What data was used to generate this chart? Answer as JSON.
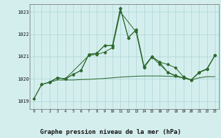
{
  "background_color": "#d4eeee",
  "grid_color": "#aad4d4",
  "line_color": "#2d6a2d",
  "title": "Graphe pression niveau de la mer (hPa)",
  "ylim": [
    1018.65,
    1023.35
  ],
  "xlim": [
    -0.5,
    23.5
  ],
  "yticks": [
    1019,
    1020,
    1021,
    1022,
    1023
  ],
  "xticks": [
    0,
    1,
    2,
    3,
    4,
    5,
    6,
    7,
    8,
    9,
    10,
    11,
    12,
    13,
    14,
    15,
    16,
    17,
    18,
    19,
    20,
    21,
    22,
    23
  ],
  "series1_x": [
    0,
    1,
    2,
    3,
    4,
    5,
    6,
    7,
    8,
    9,
    10,
    11,
    12,
    13,
    14,
    15,
    16,
    17,
    18,
    19,
    20,
    21,
    22,
    23
  ],
  "series1_y": [
    1019.1,
    1019.75,
    1019.85,
    1019.95,
    1019.95,
    1019.95,
    1019.97,
    1019.98,
    1020.0,
    1020.02,
    1020.05,
    1020.08,
    1020.1,
    1020.12,
    1020.13,
    1020.13,
    1020.13,
    1020.12,
    1020.1,
    1020.05,
    1019.95,
    1020.05,
    1020.1,
    1020.1
  ],
  "series2_x": [
    0,
    1,
    2,
    3,
    4,
    5,
    6,
    7,
    8,
    9,
    10,
    11,
    12,
    13,
    14,
    15,
    16,
    17,
    18,
    19,
    20,
    21,
    22,
    23
  ],
  "series2_y": [
    1019.1,
    1019.75,
    1019.85,
    1020.05,
    1020.0,
    1020.2,
    1020.38,
    1021.1,
    1021.15,
    1021.5,
    1021.5,
    1023.15,
    1021.85,
    1022.2,
    1020.55,
    1021.0,
    1020.75,
    1020.65,
    1020.5,
    1020.1,
    1019.95,
    1020.3,
    1020.45,
    1021.05
  ],
  "series3_x": [
    1,
    2,
    3,
    4,
    5,
    6,
    7,
    8,
    9,
    10,
    11,
    12,
    13,
    14,
    15,
    16,
    17,
    18,
    19,
    20,
    21,
    22,
    23
  ],
  "series3_y": [
    1019.75,
    1019.85,
    1020.05,
    1020.0,
    1020.2,
    1020.38,
    1021.1,
    1021.15,
    1021.5,
    1021.5,
    1023.15,
    1021.85,
    1022.2,
    1020.55,
    1021.0,
    1020.75,
    1020.3,
    1020.15,
    1020.05,
    1019.95,
    1020.3,
    1020.45,
    1021.05
  ],
  "series4_x": [
    2,
    3,
    4,
    7,
    8,
    9,
    10,
    11,
    13,
    14,
    15,
    16,
    17,
    18,
    19,
    20,
    21,
    22,
    23
  ],
  "series4_y": [
    1019.85,
    1020.05,
    1020.0,
    1021.05,
    1021.1,
    1021.2,
    1021.4,
    1023.0,
    1022.1,
    1020.5,
    1020.98,
    1020.65,
    1020.3,
    1020.12,
    1020.05,
    1019.95,
    1020.28,
    1020.43,
    1021.05
  ]
}
